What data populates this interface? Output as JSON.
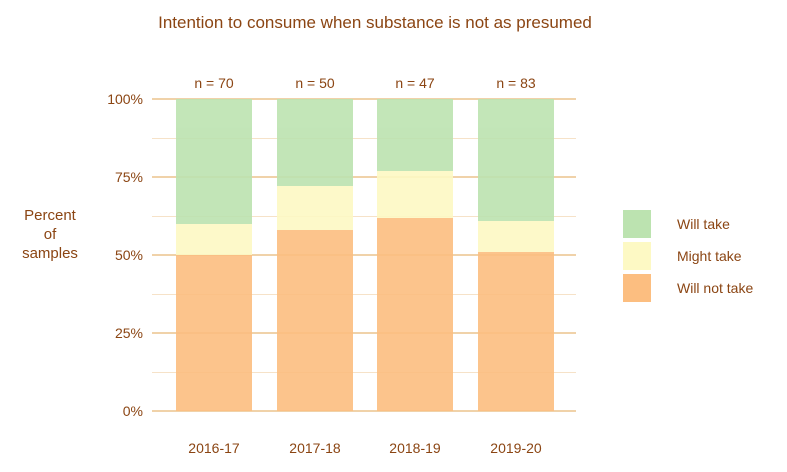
{
  "title": "Intention to consume when substance is not as presumed",
  "y_axis": {
    "title_lines": [
      "Percent",
      "of",
      "samples"
    ],
    "ticks": [
      "100%",
      "75%",
      "50%",
      "25%",
      "0%"
    ]
  },
  "chart_data": {
    "type": "bar",
    "stacked": true,
    "title": "Intention to consume when substance is not as presumed",
    "ylabel": "Percent of samples",
    "xlabel": "",
    "ylim": [
      0,
      100
    ],
    "y_tick_values": [
      0,
      25,
      50,
      75,
      100
    ],
    "grid": "horizontal major and minor gridlines, no axis lines",
    "legend_position": "right",
    "categories": [
      "2016-17",
      "2017-18",
      "2018-19",
      "2019-20"
    ],
    "n_labels": [
      "n = 70",
      "n = 50",
      "n = 47",
      "n = 83"
    ],
    "series": [
      {
        "name": "Will take",
        "color": "#bce3b0",
        "values": [
          40,
          28,
          23,
          39
        ]
      },
      {
        "name": "Might take",
        "color": "#fdf9c4",
        "values": [
          10,
          14,
          15,
          10
        ]
      },
      {
        "name": "Will not take",
        "color": "#fcbe80",
        "values": [
          50,
          58,
          62,
          51
        ]
      }
    ]
  },
  "legend": {
    "items": [
      {
        "label": "Will take",
        "color": "#bce3b0"
      },
      {
        "label": "Might take",
        "color": "#fdf9c4"
      },
      {
        "label": "Will not take",
        "color": "#fcbe80"
      }
    ]
  },
  "colors": {
    "text": "#8b4513",
    "gridline_major": "#f0d2a9",
    "gridline_minor": "#f6e2c8",
    "background": "#ffffff"
  }
}
